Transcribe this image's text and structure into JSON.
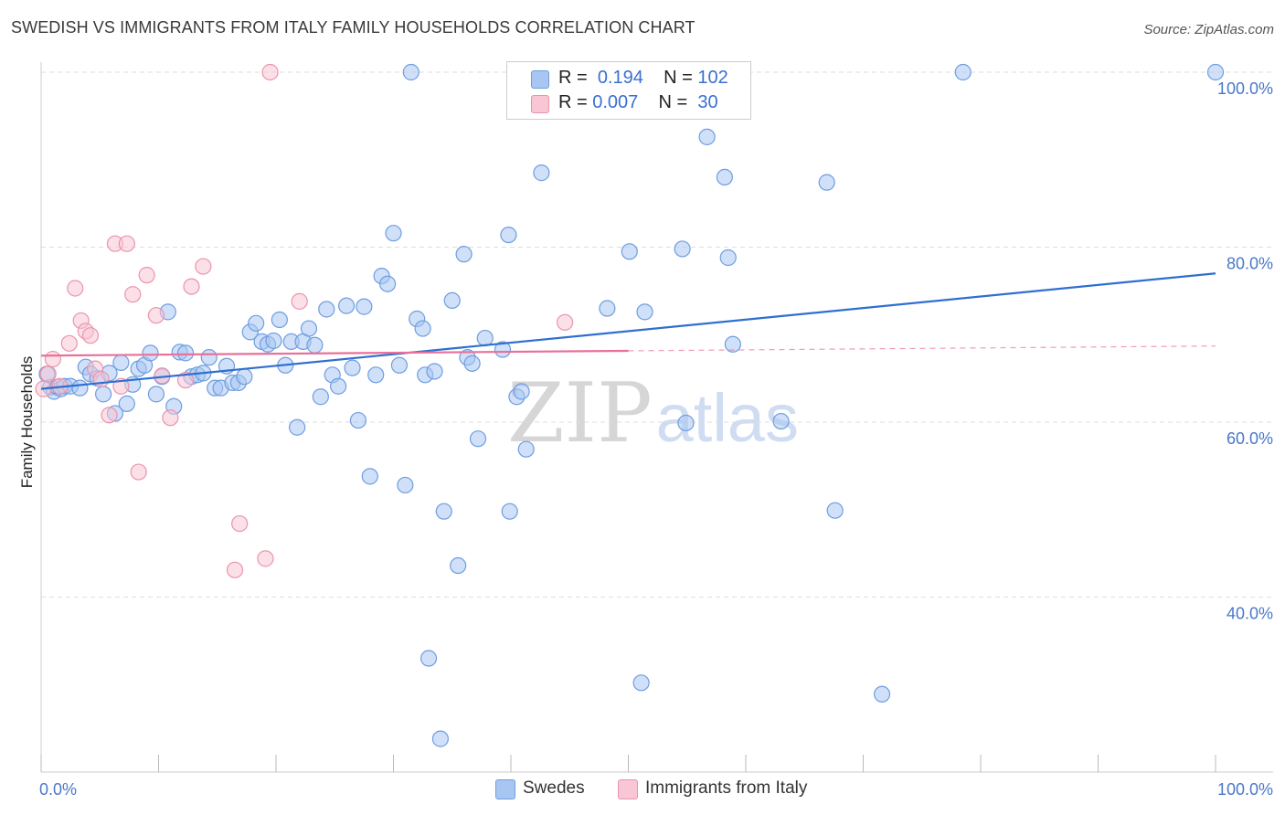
{
  "title": "SWEDISH VS IMMIGRANTS FROM ITALY FAMILY HOUSEHOLDS CORRELATION CHART",
  "source": "Source: ZipAtlas.com",
  "watermark": {
    "zip": "ZIP",
    "atlas": "atlas"
  },
  "legend": {
    "r_label": "R =",
    "n_label": "N =",
    "rows": [
      {
        "name": "Swedes",
        "r": "0.194",
        "n": "102",
        "fill": "#a8c6f2",
        "stroke": "#6f9de0"
      },
      {
        "name": "Immigrants from Italy",
        "r": "0.007",
        "n": "30",
        "fill": "#f8c6d5",
        "stroke": "#ec93ad"
      }
    ]
  },
  "colors": {
    "blue": "#2f6fd0",
    "pink": "#e8709a",
    "grid": "#dddddd",
    "axis_text": "#4a78c8"
  },
  "chart_data": {
    "type": "scatter",
    "xlabel": "",
    "ylabel": "Family Households",
    "xlim": [
      0,
      100
    ],
    "ylim": [
      20,
      100
    ],
    "x_tick_labels": [
      {
        "value": 0,
        "label": "0.0%"
      },
      {
        "value": 100,
        "label": "100.0%"
      }
    ],
    "y_tick_labels": [
      {
        "value": 100,
        "label": "100.0%"
      },
      {
        "value": 80,
        "label": "80.0%"
      },
      {
        "value": 60,
        "label": "60.0%"
      },
      {
        "value": 40,
        "label": "40.0%"
      }
    ],
    "grid": true,
    "legend_position": "top-center",
    "series": [
      {
        "name": "Swedes",
        "color": "#6f9de0",
        "trend": {
          "x": [
            0,
            100
          ],
          "y": [
            63.8,
            77.0
          ],
          "dashed_from": null
        },
        "points": [
          [
            0.5,
            65.5
          ],
          [
            0.8,
            64.0
          ],
          [
            1.1,
            63.5
          ],
          [
            1.4,
            64.0
          ],
          [
            1.7,
            63.8
          ],
          [
            2.0,
            64.1
          ],
          [
            2.5,
            64.1
          ],
          [
            3.3,
            63.9
          ],
          [
            3.8,
            66.3
          ],
          [
            4.2,
            65.5
          ],
          [
            4.8,
            65.0
          ],
          [
            5.3,
            63.2
          ],
          [
            5.8,
            65.6
          ],
          [
            6.3,
            61.0
          ],
          [
            6.8,
            66.8
          ],
          [
            7.3,
            62.1
          ],
          [
            7.8,
            64.3
          ],
          [
            8.3,
            66.1
          ],
          [
            8.8,
            66.5
          ],
          [
            9.3,
            67.9
          ],
          [
            9.8,
            63.2
          ],
          [
            10.3,
            65.2
          ],
          [
            10.8,
            72.6
          ],
          [
            11.3,
            61.8
          ],
          [
            11.8,
            68.0
          ],
          [
            12.3,
            67.9
          ],
          [
            12.8,
            65.2
          ],
          [
            13.3,
            65.4
          ],
          [
            13.8,
            65.6
          ],
          [
            14.3,
            67.4
          ],
          [
            14.8,
            63.9
          ],
          [
            15.3,
            63.9
          ],
          [
            15.8,
            66.4
          ],
          [
            16.3,
            64.5
          ],
          [
            16.8,
            64.5
          ],
          [
            17.3,
            65.2
          ],
          [
            17.8,
            70.3
          ],
          [
            18.3,
            71.3
          ],
          [
            18.8,
            69.2
          ],
          [
            19.3,
            68.9
          ],
          [
            19.8,
            69.3
          ],
          [
            20.3,
            71.7
          ],
          [
            20.8,
            66.5
          ],
          [
            21.3,
            69.2
          ],
          [
            21.8,
            59.4
          ],
          [
            22.3,
            69.2
          ],
          [
            22.8,
            70.7
          ],
          [
            23.3,
            68.8
          ],
          [
            23.8,
            62.9
          ],
          [
            24.3,
            72.9
          ],
          [
            24.8,
            65.4
          ],
          [
            25.3,
            64.1
          ],
          [
            26.0,
            73.3
          ],
          [
            26.5,
            66.2
          ],
          [
            27.0,
            60.2
          ],
          [
            27.5,
            73.2
          ],
          [
            28.0,
            53.8
          ],
          [
            28.5,
            65.4
          ],
          [
            29.0,
            76.7
          ],
          [
            29.5,
            75.8
          ],
          [
            30.0,
            81.6
          ],
          [
            30.5,
            66.5
          ],
          [
            31.0,
            52.8
          ],
          [
            31.5,
            100.0
          ],
          [
            32.0,
            71.8
          ],
          [
            32.5,
            70.7
          ],
          [
            32.7,
            65.4
          ],
          [
            33.0,
            33.0
          ],
          [
            33.5,
            65.8
          ],
          [
            34.0,
            23.8
          ],
          [
            34.3,
            49.8
          ],
          [
            35.0,
            73.9
          ],
          [
            35.5,
            43.6
          ],
          [
            36.0,
            79.2
          ],
          [
            36.3,
            67.4
          ],
          [
            36.7,
            66.7
          ],
          [
            37.2,
            58.1
          ],
          [
            37.8,
            69.6
          ],
          [
            39.3,
            68.3
          ],
          [
            39.8,
            81.4
          ],
          [
            39.9,
            49.8
          ],
          [
            40.5,
            62.9
          ],
          [
            40.9,
            63.5
          ],
          [
            41.3,
            56.9
          ],
          [
            42.6,
            88.5
          ],
          [
            48.2,
            73.0
          ],
          [
            50.1,
            79.5
          ],
          [
            51.1,
            30.2
          ],
          [
            51.4,
            72.6
          ],
          [
            54.6,
            79.8
          ],
          [
            54.9,
            59.9
          ],
          [
            56.7,
            92.6
          ],
          [
            58.2,
            88.0
          ],
          [
            58.5,
            78.8
          ],
          [
            58.9,
            68.9
          ],
          [
            63.0,
            60.1
          ],
          [
            66.9,
            87.4
          ],
          [
            67.6,
            49.9
          ],
          [
            71.6,
            28.9
          ],
          [
            78.5,
            100.0
          ],
          [
            100.0,
            100.0
          ],
          [
            41.8,
            100.0
          ]
        ]
      },
      {
        "name": "Immigrants from Italy",
        "color": "#ec93ad",
        "trend": {
          "x": [
            0,
            100
          ],
          "y": [
            67.6,
            68.7
          ],
          "dashed_from": 50
        },
        "points": [
          [
            0.2,
            63.8
          ],
          [
            0.6,
            65.5
          ],
          [
            1.0,
            67.2
          ],
          [
            1.6,
            64.1
          ],
          [
            2.4,
            69.0
          ],
          [
            2.9,
            75.3
          ],
          [
            3.4,
            71.6
          ],
          [
            3.8,
            70.4
          ],
          [
            4.2,
            69.9
          ],
          [
            4.6,
            66.1
          ],
          [
            5.1,
            64.9
          ],
          [
            5.8,
            60.8
          ],
          [
            6.3,
            80.4
          ],
          [
            6.8,
            64.1
          ],
          [
            7.3,
            80.4
          ],
          [
            7.8,
            74.6
          ],
          [
            8.3,
            54.3
          ],
          [
            9.0,
            76.8
          ],
          [
            9.8,
            72.2
          ],
          [
            10.3,
            65.3
          ],
          [
            11.0,
            60.5
          ],
          [
            12.3,
            64.8
          ],
          [
            12.8,
            75.5
          ],
          [
            13.8,
            77.8
          ],
          [
            16.5,
            43.1
          ],
          [
            16.9,
            48.4
          ],
          [
            19.1,
            44.4
          ],
          [
            19.5,
            100.0
          ],
          [
            22.0,
            73.8
          ],
          [
            44.6,
            71.4
          ]
        ]
      }
    ]
  }
}
